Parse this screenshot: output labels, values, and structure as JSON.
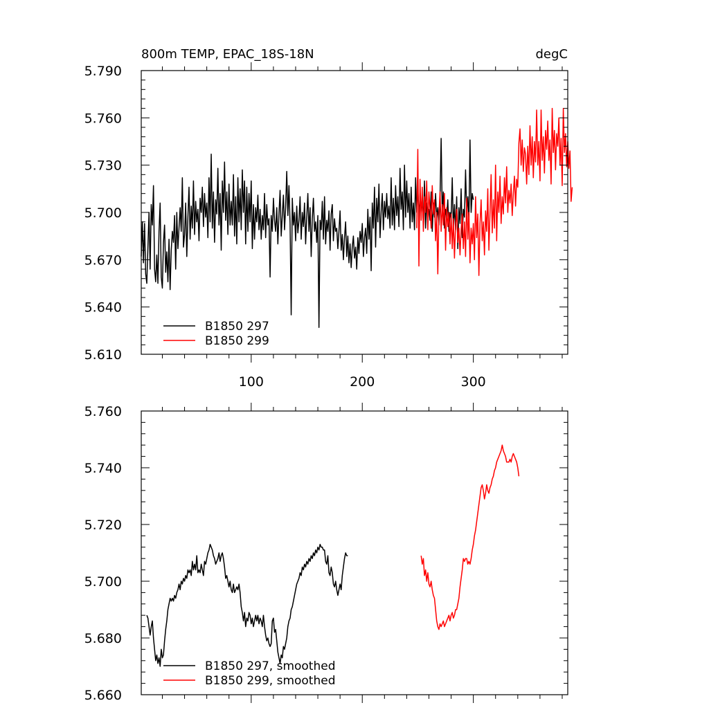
{
  "chart_data": [
    {
      "type": "line",
      "title": "800m TEMP, EPAC_18S-18N",
      "units": "degC",
      "xlim": [
        1,
        385
      ],
      "ylim": [
        5.61,
        5.79
      ],
      "yticks": [
        "5.610",
        "5.640",
        "5.670",
        "5.700",
        "5.730",
        "5.760",
        "5.790"
      ],
      "xticks": [
        "100",
        "200",
        "300"
      ],
      "grid": false,
      "legend_position": "bottom-left",
      "series": [
        {
          "name": "B1850 297",
          "color": "#000000",
          "x_start": 1,
          "y": [
            5.672,
            5.694,
            5.668,
            5.693,
            5.661,
            5.655,
            5.678,
            5.7,
            5.664,
            5.705,
            5.692,
            5.717,
            5.664,
            5.656,
            5.673,
            5.655,
            5.688,
            5.706,
            5.659,
            5.652,
            5.681,
            5.692,
            5.662,
            5.675,
            5.656,
            5.683,
            5.651,
            5.676,
            5.688,
            5.681,
            5.698,
            5.664,
            5.7,
            5.677,
            5.69,
            5.703,
            5.688,
            5.722,
            5.678,
            5.686,
            5.706,
            5.672,
            5.697,
            5.716,
            5.683,
            5.704,
            5.69,
            5.72,
            5.686,
            5.707,
            5.694,
            5.702,
            5.682,
            5.709,
            5.7,
            5.716,
            5.691,
            5.712,
            5.697,
            5.706,
            5.684,
            5.722,
            5.694,
            5.737,
            5.69,
            5.713,
            5.681,
            5.708,
            5.699,
            5.728,
            5.692,
            5.712,
            5.676,
            5.72,
            5.7,
            5.732,
            5.695,
            5.713,
            5.686,
            5.718,
            5.692,
            5.707,
            5.692,
            5.724,
            5.685,
            5.71,
            5.68,
            5.722,
            5.694,
            5.715,
            5.689,
            5.727,
            5.7,
            5.72,
            5.68,
            5.716,
            5.688,
            5.712,
            5.694,
            5.72,
            5.677,
            5.705,
            5.683,
            5.703,
            5.694,
            5.711,
            5.689,
            5.702,
            5.683,
            5.698,
            5.689,
            5.712,
            5.684,
            5.705,
            5.692,
            5.696,
            5.659,
            5.698,
            5.688,
            5.709,
            5.695,
            5.688,
            5.703,
            5.68,
            5.699,
            5.714,
            5.685,
            5.698,
            5.711,
            5.689,
            5.703,
            5.726,
            5.698,
            5.717,
            5.693,
            5.635,
            5.709,
            5.692,
            5.7,
            5.682,
            5.704,
            5.687,
            5.695,
            5.71,
            5.683,
            5.7,
            5.691,
            5.706,
            5.68,
            5.697,
            5.712,
            5.688,
            5.703,
            5.672,
            5.696,
            5.709,
            5.688,
            5.694,
            5.681,
            5.698,
            5.627,
            5.695,
            5.689,
            5.707,
            5.683,
            5.71,
            5.68,
            5.695,
            5.688,
            5.701,
            5.676,
            5.699,
            5.705,
            5.682,
            5.696,
            5.688,
            5.69,
            5.677,
            5.688,
            5.701,
            5.676,
            5.686,
            5.67,
            5.684,
            5.694,
            5.672,
            5.685,
            5.668,
            5.68,
            5.665,
            5.678,
            5.685,
            5.671,
            5.678,
            5.664,
            5.684,
            5.674,
            5.688,
            5.681,
            5.693,
            5.672,
            5.684,
            5.69,
            5.674,
            5.702,
            5.683,
            5.697,
            5.663,
            5.706,
            5.69,
            5.716,
            5.678,
            5.709,
            5.694,
            5.718,
            5.684,
            5.7,
            5.712,
            5.689,
            5.707,
            5.697,
            5.712,
            5.696,
            5.704,
            5.69,
            5.722,
            5.692,
            5.709,
            5.689,
            5.717,
            5.698,
            5.71,
            5.691,
            5.728,
            5.702,
            5.713,
            5.689,
            5.73,
            5.697,
            5.72,
            5.7,
            5.712,
            5.69,
            5.716,
            5.694,
            5.706,
            5.689,
            5.722,
            5.7,
            5.716,
            5.696,
            5.712,
            5.7,
            5.708,
            5.693,
            5.72,
            5.69,
            5.706,
            5.7,
            5.702,
            5.695,
            5.713,
            5.688,
            5.706,
            5.697,
            5.712,
            5.696,
            5.703,
            5.692,
            5.709,
            5.747,
            5.7,
            5.713,
            5.69,
            5.702,
            5.697,
            5.708,
            5.688,
            5.7,
            5.696,
            5.722,
            5.69,
            5.705,
            5.689,
            5.71,
            5.677,
            5.703,
            5.693,
            5.715,
            5.684,
            5.702,
            5.697,
            5.727,
            5.7,
            5.71,
            5.694,
            5.746,
            5.7,
            5.712,
            5.708
          ]
        },
        {
          "name": "B1850 299",
          "color": "#ff0000",
          "x_start": 249,
          "y": [
            5.69,
            5.74,
            5.666,
            5.721,
            5.695,
            5.716,
            5.688,
            5.71,
            5.7,
            5.72,
            5.689,
            5.713,
            5.702,
            5.69,
            5.717,
            5.699,
            5.708,
            5.682,
            5.7,
            5.661,
            5.699,
            5.713,
            5.688,
            5.705,
            5.692,
            5.712,
            5.676,
            5.703,
            5.691,
            5.7,
            5.68,
            5.699,
            5.677,
            5.696,
            5.671,
            5.692,
            5.702,
            5.681,
            5.69,
            5.673,
            5.689,
            5.699,
            5.677,
            5.694,
            5.672,
            5.709,
            5.683,
            5.7,
            5.668,
            5.69,
            5.68,
            5.693,
            5.67,
            5.71,
            5.684,
            5.699,
            5.66,
            5.693,
            5.708,
            5.682,
            5.694,
            5.673,
            5.701,
            5.688,
            5.715,
            5.676,
            5.7,
            5.724,
            5.687,
            5.708,
            5.69,
            5.73,
            5.682,
            5.713,
            5.7,
            5.723,
            5.693,
            5.71,
            5.699,
            5.722,
            5.706,
            5.729,
            5.7,
            5.714,
            5.706,
            5.718,
            5.698,
            5.712,
            5.723,
            5.704,
            5.721,
            5.716,
            5.744,
            5.753,
            5.73,
            5.746,
            5.726,
            5.741,
            5.737,
            5.718,
            5.742,
            5.724,
            5.755,
            5.73,
            5.748,
            5.722,
            5.745,
            5.732,
            5.765,
            5.73,
            5.745,
            5.72,
            5.765,
            5.733,
            5.748,
            5.725,
            5.752,
            5.74,
            5.758,
            5.733,
            5.746,
            5.718,
            5.766,
            5.738,
            5.752,
            5.727,
            5.75,
            5.742,
            5.76,
            5.73,
            5.747,
            5.717,
            5.766,
            5.738,
            5.75,
            5.729,
            5.745,
            5.728,
            5.739,
            5.707,
            5.716
          ]
        }
      ]
    },
    {
      "type": "line",
      "title": "",
      "xlim": [
        1,
        385
      ],
      "ylim": [
        5.66,
        5.76
      ],
      "yticks": [
        "5.660",
        "5.680",
        "5.700",
        "5.720",
        "5.740",
        "5.760"
      ],
      "grid": false,
      "legend_position": "bottom-left",
      "series": [
        {
          "name": "B1850 297, smoothed",
          "color": "#000000",
          "x_start": 6,
          "y": [
            5.688,
            5.687,
            5.684,
            5.681,
            5.684,
            5.686,
            5.68,
            5.676,
            5.672,
            5.674,
            5.671,
            5.673,
            5.67,
            5.676,
            5.673,
            5.674,
            5.679,
            5.683,
            5.686,
            5.69,
            5.692,
            5.694,
            5.693,
            5.694,
            5.693,
            5.695,
            5.694,
            5.696,
            5.697,
            5.699,
            5.697,
            5.7,
            5.699,
            5.701,
            5.7,
            5.702,
            5.701,
            5.704,
            5.703,
            5.704,
            5.702,
            5.707,
            5.704,
            5.706,
            5.704,
            5.709,
            5.703,
            5.704,
            5.703,
            5.706,
            5.704,
            5.702,
            5.707,
            5.706,
            5.708,
            5.71,
            5.711,
            5.713,
            5.712,
            5.711,
            5.709,
            5.708,
            5.706,
            5.707,
            5.708,
            5.71,
            5.707,
            5.709,
            5.71,
            5.708,
            5.705,
            5.701,
            5.702,
            5.7,
            5.698,
            5.7,
            5.697,
            5.696,
            5.699,
            5.696,
            5.697,
            5.698,
            5.697,
            5.699,
            5.696,
            5.691,
            5.689,
            5.686,
            5.689,
            5.684,
            5.687,
            5.686,
            5.689,
            5.688,
            5.685,
            5.687,
            5.684,
            5.686,
            5.688,
            5.686,
            5.688,
            5.685,
            5.687,
            5.686,
            5.684,
            5.688,
            5.684,
            5.681,
            5.679,
            5.68,
            5.678,
            5.677,
            5.678,
            5.686,
            5.687,
            5.682,
            5.683,
            5.679,
            5.675,
            5.673,
            5.671,
            5.674,
            5.673,
            5.677,
            5.676,
            5.678,
            5.68,
            5.684,
            5.686,
            5.687,
            5.69,
            5.691,
            5.693,
            5.695,
            5.697,
            5.699,
            5.7,
            5.701,
            5.703,
            5.702,
            5.705,
            5.704,
            5.706,
            5.705,
            5.707,
            5.706,
            5.708,
            5.707,
            5.709,
            5.708,
            5.71,
            5.709,
            5.711,
            5.71,
            5.712,
            5.711,
            5.713,
            5.712,
            5.712,
            5.711,
            5.711,
            5.707,
            5.706,
            5.709,
            5.703,
            5.702,
            5.705,
            5.703,
            5.699,
            5.698,
            5.7,
            5.697,
            5.695,
            5.697,
            5.699,
            5.697,
            5.702,
            5.705,
            5.708,
            5.71,
            5.709,
            5.709
          ]
        },
        {
          "name": "B1850 299, smoothed",
          "color": "#ff0000",
          "x_start": 253,
          "y": [
            5.709,
            5.706,
            5.708,
            5.702,
            5.704,
            5.7,
            5.703,
            5.699,
            5.698,
            5.7,
            5.697,
            5.695,
            5.694,
            5.69,
            5.686,
            5.684,
            5.683,
            5.685,
            5.684,
            5.685,
            5.686,
            5.684,
            5.685,
            5.686,
            5.687,
            5.688,
            5.686,
            5.688,
            5.689,
            5.687,
            5.688,
            5.69,
            5.69,
            5.692,
            5.694,
            5.698,
            5.701,
            5.704,
            5.708,
            5.707,
            5.708,
            5.708,
            5.706,
            5.707,
            5.706,
            5.708,
            5.711,
            5.713,
            5.716,
            5.718,
            5.721,
            5.724,
            5.727,
            5.73,
            5.733,
            5.734,
            5.732,
            5.729,
            5.731,
            5.734,
            5.732,
            5.731,
            5.733,
            5.734,
            5.736,
            5.737,
            5.739,
            5.74,
            5.742,
            5.743,
            5.744,
            5.745,
            5.746,
            5.748,
            5.746,
            5.745,
            5.744,
            5.742,
            5.742,
            5.742,
            5.743,
            5.742,
            5.744,
            5.745,
            5.744,
            5.743,
            5.742,
            5.74,
            5.737
          ]
        }
      ]
    }
  ]
}
